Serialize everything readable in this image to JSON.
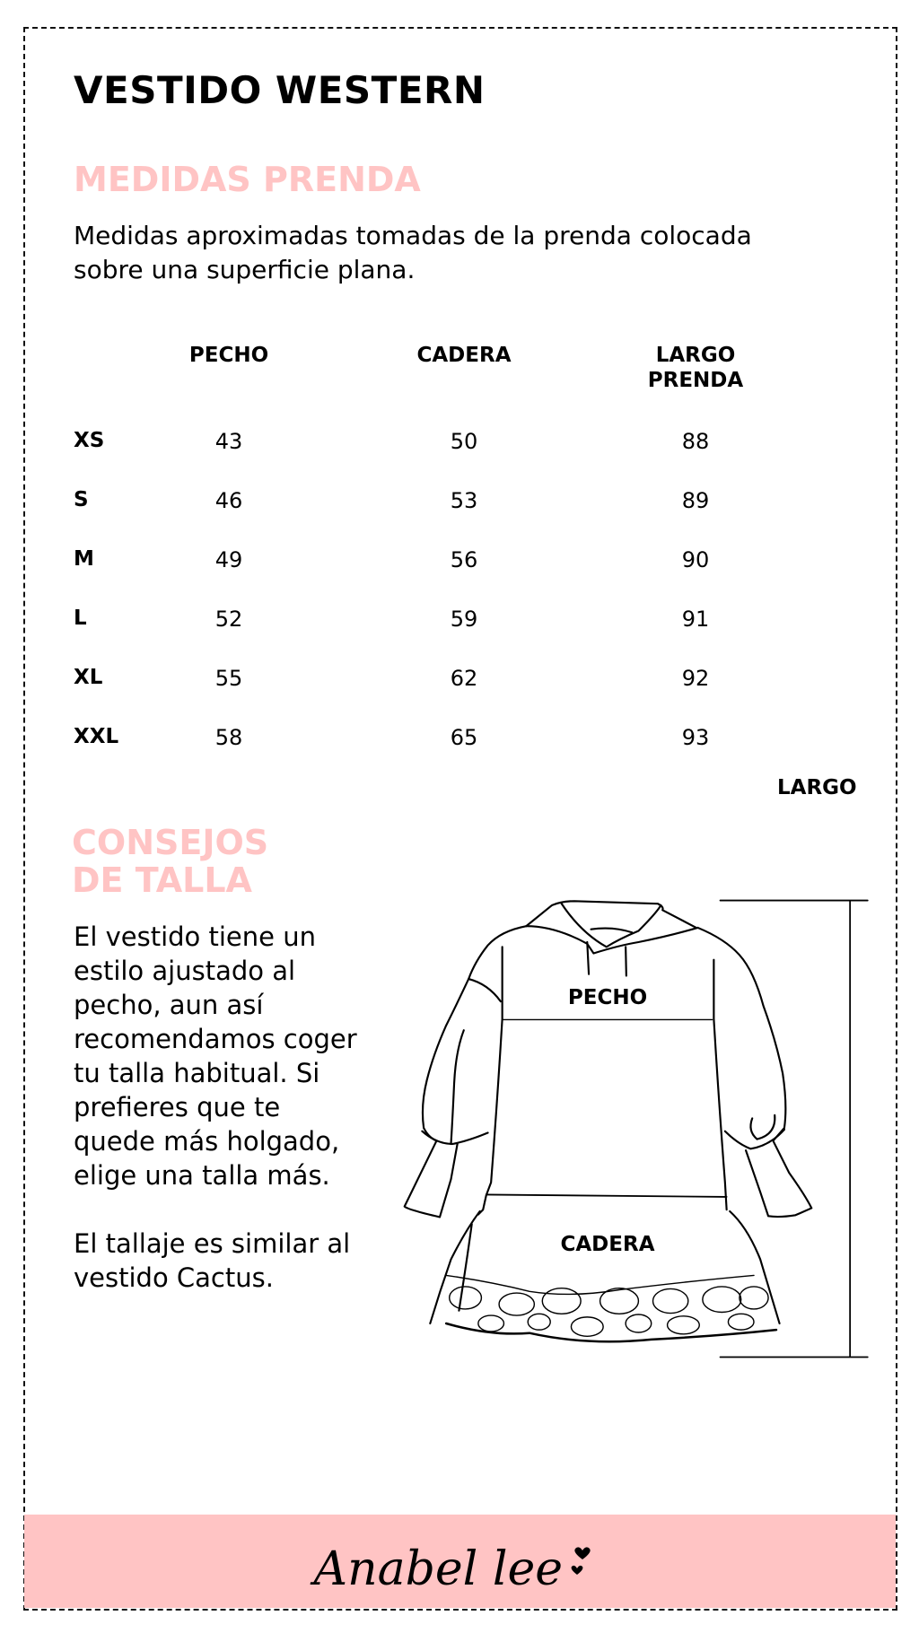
{
  "title": "VESTIDO WESTERN",
  "measurements": {
    "heading": "MEDIDAS PRENDA",
    "description": "Medidas aproximadas tomadas de la prenda colocada sobre una superficie plana.",
    "columns": [
      "PECHO",
      "CADERA",
      "LARGO PRENDA"
    ],
    "rows": [
      {
        "size": "XS",
        "values": [
          "43",
          "50",
          "88"
        ]
      },
      {
        "size": "S",
        "values": [
          "46",
          "53",
          "89"
        ]
      },
      {
        "size": "M",
        "values": [
          "49",
          "56",
          "90"
        ]
      },
      {
        "size": "L",
        "values": [
          "52",
          "59",
          "91"
        ]
      },
      {
        "size": "XL",
        "values": [
          "55",
          "62",
          "92"
        ]
      },
      {
        "size": "XXL",
        "values": [
          "58",
          "65",
          "93"
        ]
      }
    ]
  },
  "tips": {
    "heading_line1": "CONSEJOS",
    "heading_line2": "DE TALLA",
    "paragraph1": "El vestido tiene un estilo ajustado al pecho, aun así recomendamos coger tu talla habitual. Si prefieres que te quede más holgado, elige una talla más.",
    "paragraph2": "El tallaje es similar al vestido Cactus."
  },
  "diagram": {
    "label_largo": "LARGO",
    "label_pecho": "PECHO",
    "label_cadera": "CADERA"
  },
  "footer": {
    "brand": "Anabel lee",
    "background_color": "#ffc4c4"
  },
  "colors": {
    "accent_pink": "#ffc4c4",
    "text": "#000000"
  }
}
